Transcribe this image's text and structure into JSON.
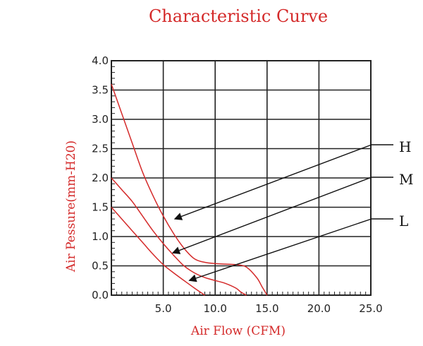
{
  "chart_data": {
    "type": "line",
    "title": "Characteristic Curve",
    "xlabel": "Air Flow (CFM)",
    "ylabel": "Air Pessure(mm-H20)",
    "xlim": [
      0,
      25
    ],
    "ylim": [
      0,
      4
    ],
    "grid": true,
    "x_ticks": [
      5,
      10,
      15,
      20,
      25
    ],
    "x_tick_labels": [
      "5.0",
      "10.0",
      "15.0",
      "20.0",
      "25.0"
    ],
    "y_ticks": [
      0,
      0.5,
      1,
      1.5,
      2,
      2.5,
      3,
      3.5,
      4
    ],
    "y_tick_labels": [
      "0.0",
      "0.5",
      "1.0",
      "1.5",
      "2.0",
      "2.5",
      "3.0",
      "3.5",
      "4.0"
    ],
    "series": [
      {
        "name": "H",
        "color": "#d42a2a",
        "points": [
          [
            0,
            3.6
          ],
          [
            1,
            3.1
          ],
          [
            2,
            2.6
          ],
          [
            3,
            2.1
          ],
          [
            4,
            1.7
          ],
          [
            5,
            1.35
          ],
          [
            6,
            1.05
          ],
          [
            7,
            0.8
          ],
          [
            8,
            0.62
          ],
          [
            9,
            0.56
          ],
          [
            10,
            0.54
          ],
          [
            11,
            0.53
          ],
          [
            12,
            0.52
          ],
          [
            13,
            0.48
          ],
          [
            14,
            0.3
          ],
          [
            14.5,
            0.15
          ],
          [
            15,
            0
          ]
        ]
      },
      {
        "name": "M",
        "color": "#d42a2a",
        "points": [
          [
            0,
            2.0
          ],
          [
            1,
            1.8
          ],
          [
            2,
            1.6
          ],
          [
            3,
            1.35
          ],
          [
            4,
            1.1
          ],
          [
            5,
            0.88
          ],
          [
            6,
            0.68
          ],
          [
            7,
            0.5
          ],
          [
            8,
            0.38
          ],
          [
            9,
            0.3
          ],
          [
            10,
            0.25
          ],
          [
            11,
            0.2
          ],
          [
            12,
            0.12
          ],
          [
            12.5,
            0.05
          ],
          [
            13,
            0
          ]
        ]
      },
      {
        "name": "L",
        "color": "#d42a2a",
        "points": [
          [
            0,
            1.5
          ],
          [
            1,
            1.3
          ],
          [
            2,
            1.1
          ],
          [
            3,
            0.9
          ],
          [
            4,
            0.7
          ],
          [
            5,
            0.52
          ],
          [
            6,
            0.38
          ],
          [
            7,
            0.25
          ],
          [
            8,
            0.12
          ],
          [
            9,
            0
          ]
        ]
      }
    ],
    "callouts": [
      {
        "label": "H",
        "arrow_target": [
          6.1,
          1.3
        ]
      },
      {
        "label": "M",
        "arrow_target": [
          5.9,
          0.72
        ]
      },
      {
        "label": "L",
        "arrow_target": [
          7.5,
          0.25
        ]
      }
    ]
  }
}
